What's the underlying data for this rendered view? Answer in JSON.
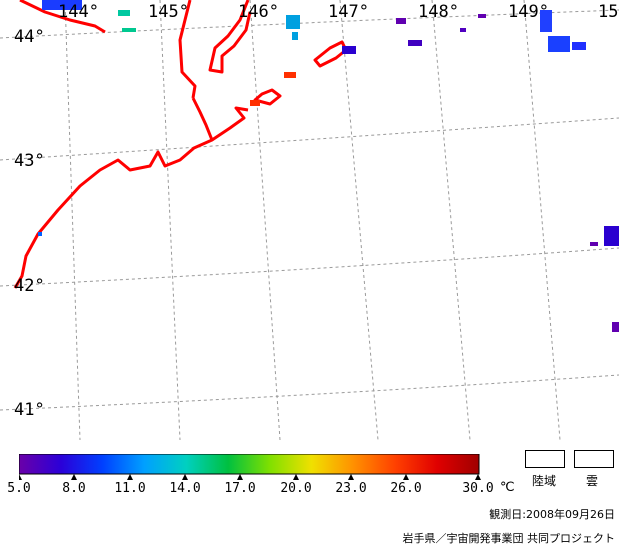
{
  "map": {
    "lon_labels": [
      "144°",
      "145°",
      "146°",
      "147°",
      "148°",
      "149°",
      "15"
    ],
    "lat_labels": [
      "44°",
      "43°",
      "42°",
      "41°"
    ]
  },
  "legend": {
    "ticks": [
      "5.0",
      "8.0",
      "11.0",
      "14.0",
      "17.0",
      "20.0",
      "23.0",
      "26.0",
      "30.0"
    ],
    "unit": "℃",
    "colors": [
      "#6a00a8",
      "#2b00d8",
      "#0040ff",
      "#00a0ff",
      "#00d0c0",
      "#00c040",
      "#80e000",
      "#f0e000",
      "#ff9000",
      "#ff4000",
      "#e00000",
      "#a00000"
    ],
    "land_label": "陸域",
    "cloud_label": "雲"
  },
  "footer": {
    "observed": "観測日:2008年09月26日",
    "credit": "岩手県／宇宙開発事業団 共同プロジェクト"
  }
}
